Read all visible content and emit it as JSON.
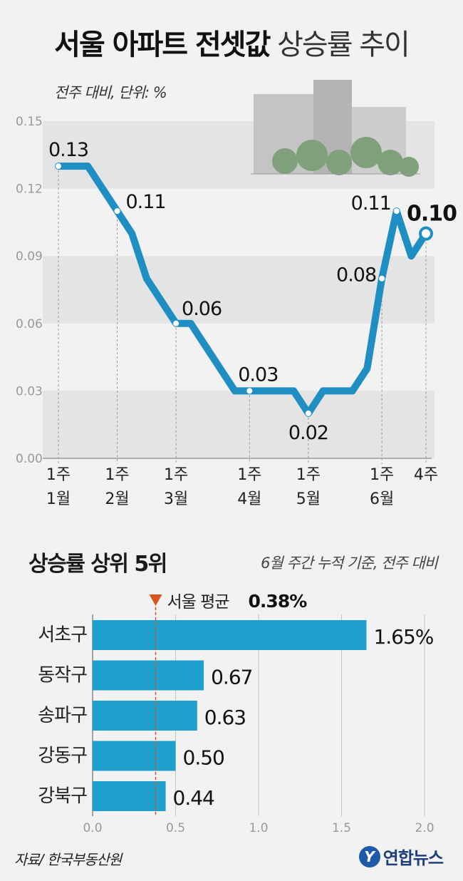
{
  "header": {
    "title_bold": "서울 아파트 전셋값",
    "title_light": "상승률 추이",
    "unit_note": "전주 대비, 단위: %"
  },
  "colors": {
    "line": "#1f8fc3",
    "bar": "#1f9fce",
    "avg_marker": "#d9531e",
    "band": "#e4e4e4",
    "grid": "#c8c8c8"
  },
  "section2": {
    "title": "상승률 상위 5위",
    "note": "6월 주간 누적 기준, 전주 대비"
  },
  "footer": {
    "source": "자료/ 한국부동산원",
    "logo_mark": "Y",
    "logo_text": "연합뉴스"
  },
  "chart_data": [
    {
      "type": "line",
      "ylim": [
        0,
        0.15
      ],
      "yticks": [
        "0.00",
        "0.03",
        "0.06",
        "0.09",
        "0.12",
        "0.15"
      ],
      "xtick_labels": [
        {
          "index": 0,
          "lines": [
            "1주",
            "1월"
          ]
        },
        {
          "index": 4,
          "lines": [
            "1주",
            "2월"
          ]
        },
        {
          "index": 8,
          "lines": [
            "1주",
            "3월"
          ]
        },
        {
          "index": 13,
          "lines": [
            "1주",
            "4월"
          ]
        },
        {
          "index": 17,
          "lines": [
            "1주",
            "5월"
          ]
        },
        {
          "index": 22,
          "lines": [
            "1주",
            "6월"
          ]
        },
        {
          "index": 25,
          "lines": [
            "4주",
            ""
          ]
        }
      ],
      "series": [
        {
          "values": [
            0.13,
            0.13,
            0.13,
            0.12,
            0.11,
            0.1,
            0.08,
            0.07,
            0.06,
            0.06,
            0.05,
            0.04,
            0.03,
            0.03,
            0.03,
            0.03,
            0.03,
            0.02,
            0.03,
            0.03,
            0.03,
            0.04,
            0.08,
            0.11,
            0.09,
            0.1
          ]
        }
      ],
      "labeled_points": [
        {
          "index": 0,
          "label": "0.13"
        },
        {
          "index": 4,
          "label": "0.11"
        },
        {
          "index": 8,
          "label": "0.06"
        },
        {
          "index": 13,
          "label": "0.03"
        },
        {
          "index": 17,
          "label": "0.02"
        },
        {
          "index": 22,
          "label": "0.08"
        },
        {
          "index": 23,
          "label": "0.11"
        },
        {
          "index": 25,
          "label": "0.10"
        }
      ]
    },
    {
      "type": "bar",
      "orientation": "horizontal",
      "categories": [
        "서초구",
        "동작구",
        "송파구",
        "강동구",
        "강북구"
      ],
      "values": [
        1.65,
        0.67,
        0.63,
        0.5,
        0.44
      ],
      "value_labels": [
        "1.65%",
        "0.67",
        "0.63",
        "0.50",
        "0.44"
      ],
      "xlim": [
        0,
        2.0
      ],
      "xticks": [
        "0.0",
        "0.5",
        "1.0",
        "1.5",
        "2.0"
      ],
      "reference": {
        "label": "서울 평균",
        "value_label": "0.38%",
        "value": 0.38
      }
    }
  ]
}
